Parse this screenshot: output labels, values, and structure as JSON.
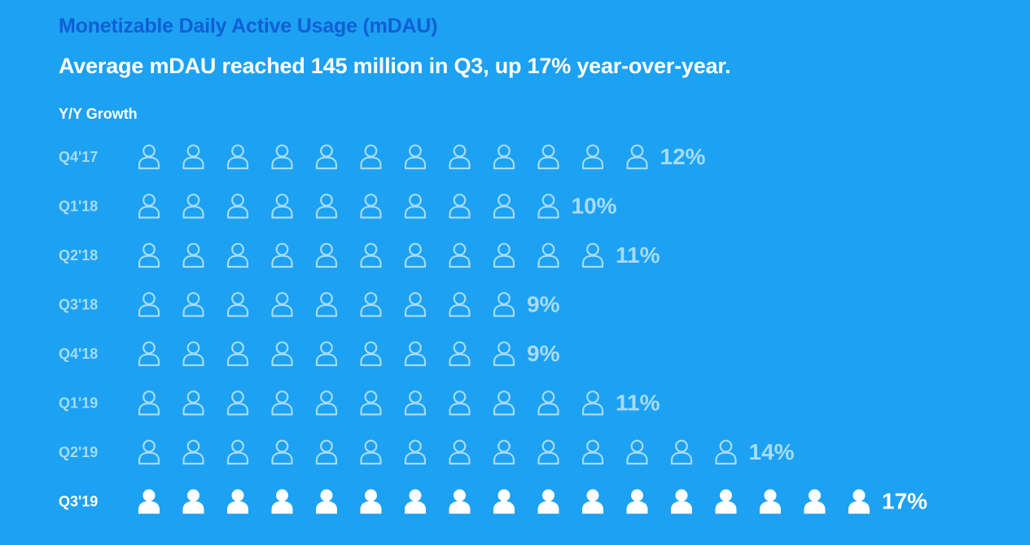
{
  "header": {
    "title": "Monetizable Daily Active Usage (mDAU)",
    "headline": "Average mDAU reached 145 million in Q3, up 17% year-over-year.",
    "section_label": "Y/Y Growth"
  },
  "colors": {
    "background": "#1da1f2",
    "title": "#0f5fd6",
    "muted": "#a6dcfb",
    "highlight": "#ffffff"
  },
  "icons": {
    "unit": "person-icon"
  },
  "chart_data": {
    "type": "pictograph",
    "categories": [
      "Q4'17",
      "Q1'18",
      "Q2'18",
      "Q3'18",
      "Q4'18",
      "Q1'19",
      "Q2'19",
      "Q3'19"
    ],
    "values": [
      12,
      10,
      11,
      9,
      9,
      11,
      14,
      17
    ],
    "labels": [
      "12%",
      "10%",
      "11%",
      "9%",
      "9%",
      "11%",
      "14%",
      "17%"
    ],
    "unit_per_icon": 1,
    "highlight_category": "Q3'19"
  }
}
